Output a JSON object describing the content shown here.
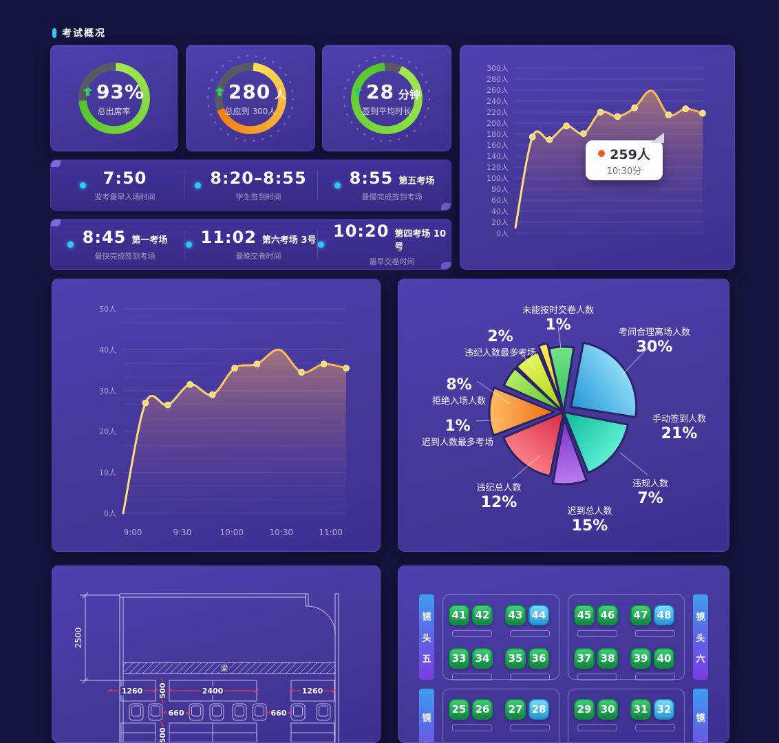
{
  "header": {
    "title": "考试概况"
  },
  "stat_cards": [
    {
      "value": "93%",
      "unit": "",
      "label": "总出席率",
      "ring": {
        "fill": 73,
        "start": 3,
        "from": "#a6e84e",
        "to": "#52c52c",
        "track": "#585866"
      },
      "ticks": false
    },
    {
      "value": "280",
      "unit": "人",
      "label": "总应到 300人",
      "ring": {
        "fill": 68,
        "start": 5,
        "from": "#ffe05a",
        "to": "#f07c12",
        "track": "#585866"
      },
      "ticks": true
    },
    {
      "value": "28",
      "unit": "分钟",
      "label": "签到平均时长",
      "ring": {
        "fill": 92,
        "start": 25,
        "from": "#a6e84e",
        "to": "#52c52c",
        "track": "#585866"
      },
      "ticks": true
    }
  ],
  "arrow_color": "#2ed06e",
  "time_rows": [
    [
      {
        "time": "7:50",
        "suffix": "",
        "label": "监考最早入场时间"
      },
      {
        "time": "8:20–8:55",
        "suffix": "",
        "label": "学生签到时间"
      },
      {
        "time": "8:55",
        "suffix": "第五考场",
        "label": "最慢完成签到考场"
      }
    ],
    [
      {
        "time": "8:45",
        "suffix": "第一考场",
        "label": "最快完成签到考场"
      },
      {
        "time": "11:02",
        "suffix": "第六考场 3号",
        "label": "最晚交卷时间"
      },
      {
        "time": "10:20",
        "suffix": "第四考场 10号",
        "label": "最早交卷时间"
      }
    ]
  ],
  "chart_data": [
    {
      "id": "attendance-trend",
      "type": "line",
      "title": "",
      "ylim": [
        0,
        300
      ],
      "ytick_step": 20,
      "ylabel_unit": "人",
      "x_labels": [],
      "values": [
        10,
        175,
        170,
        195,
        181,
        220,
        212,
        228,
        259,
        215,
        226,
        218
      ],
      "line_color": "#ffc850",
      "tooltip": {
        "value": "259人",
        "time": "10:30分"
      }
    },
    {
      "id": "room-trend",
      "type": "line",
      "title": "",
      "ylim": [
        0,
        50
      ],
      "ytick_step": 10,
      "minor_ticks": 2,
      "ylabel_unit": "人",
      "x_labels": [
        "9:00",
        "9:30",
        "10:00",
        "10:30",
        "11:00"
      ],
      "values": [
        0,
        27,
        26.5,
        31.5,
        29,
        35.5,
        36.5,
        40,
        34.5,
        36.5,
        35.5
      ],
      "line_color": "#ffc850"
    },
    {
      "id": "signin-pie",
      "type": "pie",
      "slices": [
        {
          "label": "未能按时交卷人数",
          "pct": "1%",
          "color": "#2fbf55",
          "color_light": "#74e387"
        },
        {
          "label": "考间合理离场人数",
          "pct": "30%",
          "color": "#2596d6",
          "color_light": "#8fdcf8"
        },
        {
          "label": "手动签到人数",
          "pct": "21%",
          "color": "#0cb89a",
          "color_light": "#5ff0d4"
        },
        {
          "label": "违规人数",
          "pct": "7%",
          "color": "#7631c5",
          "color_light": "#bb7cf0"
        },
        {
          "label": "迟到总人数",
          "pct": "15%",
          "color": "#d92b42",
          "color_light": "#fb8088"
        },
        {
          "label": "违纪总人数",
          "pct": "12%",
          "color": "#ef6c15",
          "color_light": "#ffbd63"
        },
        {
          "label": "迟到人数最多考场",
          "pct": "1%",
          "color": "#4fc427",
          "color_light": "#b5ee68"
        },
        {
          "label": "拒绝入场人数",
          "pct": "8%",
          "color": "#a8d114",
          "color_light": "#e6f55c"
        },
        {
          "label": "违纪人数最多考场",
          "pct": "2%",
          "color": "#f0bf0e",
          "color_light": "#ffe95e"
        }
      ]
    }
  ],
  "floorplan": {
    "height": "2500",
    "beam": "梁",
    "w_left": "1260",
    "gap_a": "500",
    "w_mid": "2400",
    "w_right": "1260",
    "chair_gap_left": "660",
    "chair_gap_right": "660",
    "gap_b": "500"
  },
  "seatmap": {
    "rows": [
      {
        "left_pill": "镜头五",
        "right_pill": "镜头六",
        "zones": [
          {
            "seat_rows": [
              [
                "41",
                "42",
                "43",
                "44"
              ],
              [
                "33",
                "34",
                "35",
                "36"
              ]
            ],
            "cyan": [
              "44"
            ]
          },
          {
            "seat_rows": [
              [
                "45",
                "46",
                "47",
                "48"
              ],
              [
                "37",
                "38",
                "39",
                "40"
              ]
            ],
            "cyan": [
              "48"
            ]
          }
        ]
      },
      {
        "left_pill": "镜头",
        "right_pill": "镜头",
        "zones": [
          {
            "seat_rows": [
              [
                "25",
                "26",
                "27",
                "28"
              ],
              [
                "",
                "",
                "",
                ""
              ]
            ],
            "cyan": [
              "28"
            ]
          },
          {
            "seat_rows": [
              [
                "29",
                "30",
                "31",
                "32"
              ],
              [
                "",
                "",
                "",
                ""
              ]
            ],
            "cyan": [
              "32"
            ]
          }
        ]
      }
    ]
  }
}
